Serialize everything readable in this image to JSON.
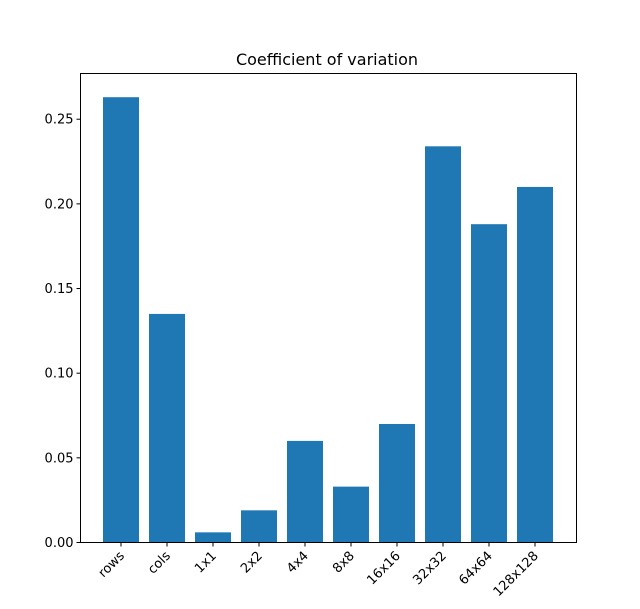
{
  "chart_data": {
    "type": "bar",
    "title": "Coefficient of variation",
    "xlabel": "",
    "ylabel": "",
    "categories": [
      "rows",
      "cols",
      "1x1",
      "2x2",
      "4x4",
      "8x8",
      "16x16",
      "32x32",
      "64x64",
      "128x128"
    ],
    "values": [
      0.263,
      0.135,
      0.006,
      0.019,
      0.06,
      0.033,
      0.07,
      0.234,
      0.188,
      0.21
    ],
    "ylim": [
      0,
      0.277
    ],
    "yticks": [
      0.0,
      0.05,
      0.1,
      0.15,
      0.2,
      0.25
    ],
    "ytick_labels": [
      "0.00",
      "0.05",
      "0.10",
      "0.15",
      "0.20",
      "0.25"
    ],
    "grid": false,
    "colors": {
      "bar": "#1f77b4"
    }
  }
}
